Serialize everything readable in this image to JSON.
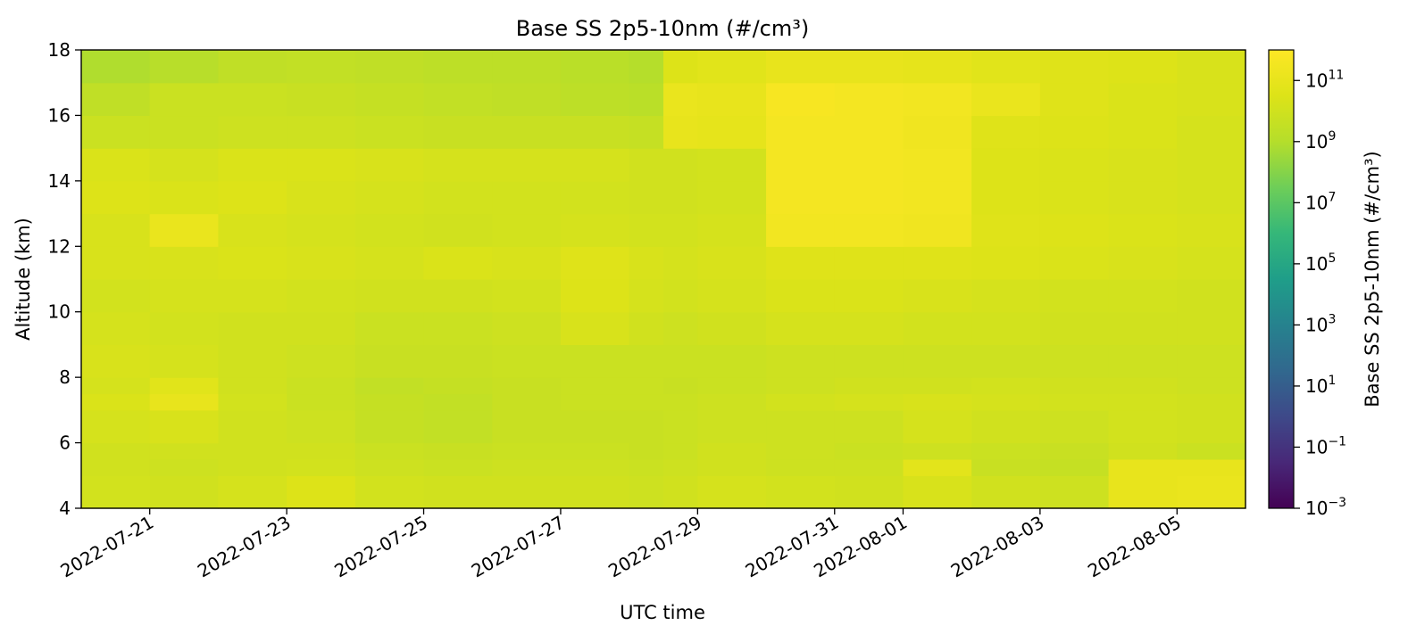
{
  "chart_data": {
    "type": "heatmap",
    "title": "Base SS 2p5-10nm (#/cm³)",
    "xlabel": "UTC time",
    "ylabel": "Altitude (km)",
    "colorbar_label": "Base SS 2p5-10nm (#/cm³)",
    "colormap": "viridis",
    "color_scale": "log",
    "x_range": [
      "2022-07-20",
      "2022-08-06"
    ],
    "y_range": [
      4,
      18
    ],
    "x_ticks": [
      "2022-07-21",
      "2022-07-23",
      "2022-07-25",
      "2022-07-27",
      "2022-07-29",
      "2022-07-31",
      "2022-08-01",
      "2022-08-03",
      "2022-08-05"
    ],
    "y_ticks": [
      4,
      6,
      8,
      10,
      12,
      14,
      16,
      18
    ],
    "colorbar_ticks": [
      "10^-3",
      "10^-1",
      "10^1",
      "10^3",
      "10^5",
      "10^7",
      "10^9",
      "10^11"
    ],
    "colorbar_range_log10": [
      -3,
      12
    ],
    "altitude_bins_km": [
      4.0,
      5.0,
      5.5,
      6.0,
      7.0,
      7.5,
      8.0,
      9.0,
      10.0,
      11.0,
      12.0,
      13.0,
      14.0,
      15.0,
      16.0,
      17.0
    ],
    "time_segments": [
      "2022-07-20",
      "2022-07-21",
      "2022-07-22",
      "2022-07-23",
      "2022-07-24",
      "2022-07-25",
      "2022-07-26",
      "2022-07-27",
      "2022-07-28",
      "2022-07-28T12",
      "2022-07-29",
      "2022-07-30",
      "2022-07-31",
      "2022-08-01",
      "2022-08-02",
      "2022-08-03",
      "2022-08-04",
      "2022-08-05",
      "2022-08-06"
    ],
    "log10_concentration": [
      [
        10.1,
        10.0,
        10.2,
        10.5,
        10.1,
        10.0,
        10.0,
        10.0,
        9.9,
        10.0,
        10.2,
        10.1,
        10.0,
        10.3,
        10.0,
        9.9,
        11.0,
        11.1
      ],
      [
        10.0,
        9.9,
        10.0,
        10.1,
        9.9,
        9.8,
        9.9,
        9.9,
        9.8,
        9.9,
        10.0,
        9.9,
        9.9,
        10.8,
        9.7,
        9.6,
        11.0,
        11.0
      ],
      [
        10.0,
        10.0,
        10.0,
        10.0,
        9.8,
        9.7,
        9.8,
        9.8,
        9.7,
        9.8,
        10.0,
        9.9,
        9.8,
        9.9,
        9.8,
        9.7,
        10.0,
        9.8
      ],
      [
        10.2,
        10.3,
        10.0,
        9.9,
        9.6,
        9.5,
        9.7,
        9.7,
        9.7,
        9.8,
        9.9,
        9.9,
        9.9,
        10.2,
        10.0,
        9.9,
        10.1,
        10.0
      ],
      [
        10.4,
        11.0,
        10.1,
        9.8,
        9.6,
        9.5,
        9.7,
        9.8,
        9.8,
        9.8,
        9.9,
        10.1,
        10.2,
        10.3,
        10.2,
        10.1,
        10.1,
        10.0
      ],
      [
        10.2,
        10.7,
        10.0,
        9.8,
        9.5,
        9.6,
        9.7,
        9.8,
        9.8,
        9.7,
        9.8,
        9.9,
        10.0,
        10.0,
        10.1,
        10.0,
        10.0,
        9.9
      ],
      [
        10.3,
        10.2,
        10.0,
        9.9,
        9.7,
        9.7,
        9.8,
        9.8,
        9.8,
        9.8,
        9.8,
        9.9,
        9.9,
        9.9,
        9.9,
        9.9,
        9.9,
        9.9
      ],
      [
        10.2,
        10.1,
        10.0,
        10.0,
        9.8,
        9.8,
        9.9,
        10.3,
        10.0,
        9.9,
        10.0,
        10.2,
        10.2,
        10.1,
        10.1,
        10.0,
        10.0,
        10.0
      ],
      [
        10.1,
        10.2,
        10.2,
        10.1,
        10.0,
        10.0,
        10.1,
        10.5,
        10.2,
        10.1,
        10.2,
        10.4,
        10.4,
        10.3,
        10.2,
        10.1,
        10.1,
        10.0
      ],
      [
        10.3,
        10.3,
        10.4,
        10.3,
        10.2,
        10.4,
        10.3,
        10.6,
        10.3,
        10.2,
        10.3,
        10.6,
        10.6,
        10.6,
        10.5,
        10.4,
        10.3,
        10.2
      ],
      [
        10.3,
        11.1,
        10.3,
        10.2,
        10.1,
        10.0,
        10.1,
        10.2,
        10.1,
        10.1,
        10.2,
        11.5,
        11.5,
        11.4,
        10.6,
        10.5,
        10.4,
        10.3
      ],
      [
        10.5,
        10.4,
        10.5,
        10.3,
        10.2,
        10.1,
        10.1,
        10.1,
        10.0,
        10.0,
        10.1,
        11.6,
        11.6,
        11.5,
        10.5,
        10.4,
        10.3,
        10.2
      ],
      [
        10.4,
        10.2,
        10.4,
        10.4,
        10.3,
        10.2,
        10.2,
        10.2,
        10.0,
        10.0,
        10.1,
        11.6,
        11.6,
        11.5,
        10.5,
        10.4,
        10.3,
        10.2
      ],
      [
        9.8,
        9.8,
        9.9,
        9.9,
        9.8,
        9.7,
        9.7,
        9.7,
        9.6,
        11.0,
        10.9,
        11.6,
        11.6,
        11.4,
        10.6,
        10.5,
        10.4,
        10.2
      ],
      [
        9.4,
        9.8,
        9.8,
        9.7,
        9.6,
        9.5,
        9.4,
        9.3,
        9.2,
        11.1,
        11.0,
        11.7,
        11.6,
        11.5,
        11.1,
        10.6,
        10.4,
        10.3
      ],
      [
        8.9,
        9.1,
        9.4,
        9.5,
        9.4,
        9.3,
        9.3,
        9.2,
        9.0,
        10.5,
        10.7,
        11.0,
        11.0,
        10.9,
        10.7,
        10.6,
        10.5,
        10.3
      ]
    ]
  }
}
